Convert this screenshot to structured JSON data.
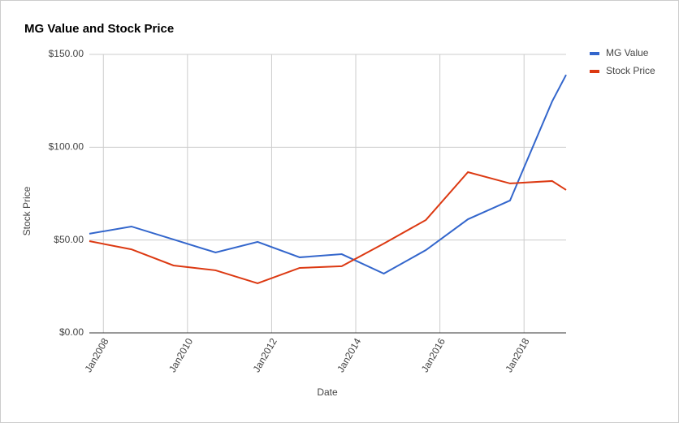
{
  "chart_data": {
    "type": "line",
    "title": "MG Value and Stock Price",
    "x_label": "Date",
    "y_label": "Stock Price",
    "x": [
      "2007-09",
      "2008-09",
      "2009-09",
      "2010-09",
      "2011-09",
      "2012-09",
      "2013-09",
      "2014-09",
      "2015-09",
      "2016-09",
      "2017-09",
      "2018-09",
      "2019-01"
    ],
    "series": [
      {
        "name": "MG Value",
        "color": "#3366cc",
        "values": [
          53.4,
          57.3,
          50.3,
          43.3,
          49,
          40.7,
          42.4,
          31.9,
          44.6,
          61.2,
          71.3,
          124.6,
          139
        ]
      },
      {
        "name": "Stock Price",
        "color": "#dc3912",
        "values": [
          49.4,
          45,
          36.3,
          33.7,
          26.7,
          35,
          35.9,
          48.1,
          60.8,
          86.6,
          80.5,
          81.8,
          77
        ]
      }
    ],
    "xlim": [
      "2007-09",
      "2019-01"
    ],
    "xticks": [
      {
        "value": "2008-01",
        "label": "Jan2008"
      },
      {
        "value": "2010-01",
        "label": "Jan2010"
      },
      {
        "value": "2012-01",
        "label": "Jan2012"
      },
      {
        "value": "2014-01",
        "label": "Jan2014"
      },
      {
        "value": "2016-01",
        "label": "Jan2016"
      },
      {
        "value": "2018-01",
        "label": "Jan2018"
      }
    ],
    "ylim": [
      0,
      150
    ],
    "yticks": [
      {
        "value": 0,
        "label": "$0.00"
      },
      {
        "value": 50,
        "label": "$50.00"
      },
      {
        "value": 100,
        "label": "$100.00"
      },
      {
        "value": 150,
        "label": "$150.00"
      }
    ],
    "grid": true,
    "legend": "right"
  }
}
